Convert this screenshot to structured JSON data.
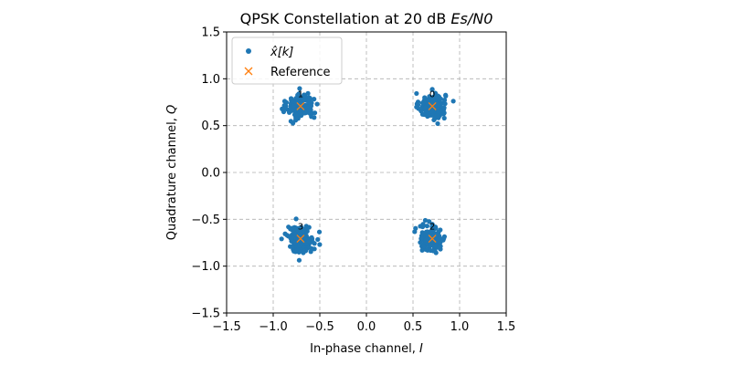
{
  "chart_data": {
    "type": "scatter",
    "title_text": "QPSK Constellation at 20 dB ",
    "title_math": "Es/N0",
    "xlabel_text": "In-phase channel, ",
    "xlabel_var": "I",
    "ylabel_text": "Quadrature channel, ",
    "ylabel_var": "Q",
    "xlim": [
      -1.5,
      1.5
    ],
    "ylim": [
      -1.5,
      1.5
    ],
    "xticks": [
      -1.5,
      -1.0,
      -0.5,
      0.0,
      0.5,
      1.0,
      1.5
    ],
    "yticks": [
      -1.5,
      -1.0,
      -0.5,
      0.0,
      0.5,
      1.0,
      1.5
    ],
    "xtick_labels": [
      "−1.5",
      "−1.0",
      "−0.5",
      "0.0",
      "0.5",
      "1.0",
      "1.5"
    ],
    "ytick_labels": [
      "−1.5",
      "−1.0",
      "−0.5",
      "0.0",
      "0.5",
      "1.0",
      "1.5"
    ],
    "grid": true,
    "legend": {
      "placement": "upper-left",
      "entries": [
        "x̂[k]",
        "Reference"
      ]
    },
    "series": [
      {
        "name": "x̂[k]",
        "color": "#1f77b4",
        "marker": "dot",
        "clusters": [
          {
            "center": [
              0.707,
              0.707
            ],
            "spread": 0.07,
            "count": 160
          },
          {
            "center": [
              -0.707,
              0.707
            ],
            "spread": 0.07,
            "count": 160
          },
          {
            "center": [
              0.707,
              -0.707
            ],
            "spread": 0.07,
            "count": 160
          },
          {
            "center": [
              -0.707,
              -0.707
            ],
            "spread": 0.07,
            "count": 160
          }
        ]
      },
      {
        "name": "Reference",
        "color": "#ff7f0e",
        "marker": "x",
        "points": [
          {
            "x": 0.707,
            "y": 0.707,
            "label": "0"
          },
          {
            "x": -0.707,
            "y": 0.707,
            "label": "1"
          },
          {
            "x": 0.707,
            "y": -0.707,
            "label": "2"
          },
          {
            "x": -0.707,
            "y": -0.707,
            "label": "3"
          }
        ]
      }
    ]
  }
}
